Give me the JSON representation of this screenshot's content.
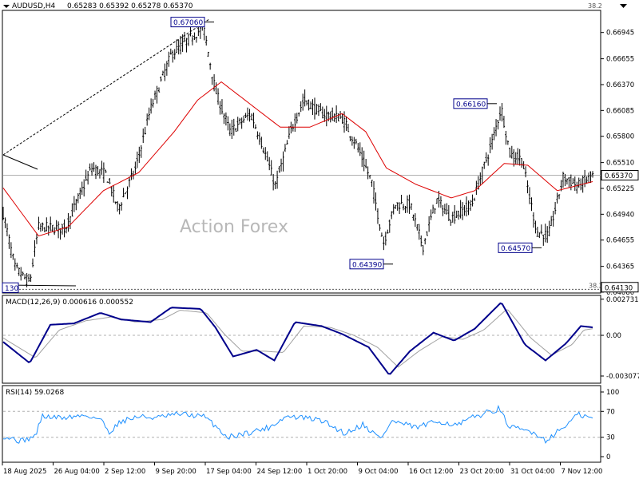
{
  "header": {
    "symbol": "AUDUSD,H4",
    "ohlc": "0.65283 0.65392 0.65278 0.65370",
    "fibo_level_top": "38.2",
    "fibo_level_bottom": "38.2"
  },
  "watermark": "Action Forex",
  "colors": {
    "bars": "#000000",
    "ma": "#dd0000",
    "macd_line": "#00008b",
    "macd_signal": "#a0a0a0",
    "rsi": "#1e90ff",
    "grid": "#b0b0b0",
    "label_box": "#00008b"
  },
  "chart_data": [
    {
      "type": "bar",
      "panel": "price",
      "x_labels": [
        "18 Aug 2025",
        "26 Aug 04:00",
        "2 Sep 12:00",
        "9 Sep 20:00",
        "17 Sep 04:00",
        "24 Sep 12:00",
        "1 Oct 20:00",
        "9 Oct 04:00",
        "16 Oct 12:00",
        "23 Oct 20:00",
        "31 Oct 04:00",
        "7 Nov 12:00"
      ],
      "y_ticks": [
        "0.66945",
        "0.66655",
        "0.66370",
        "0.66085",
        "0.65800",
        "0.65510",
        "0.65225",
        "0.64940",
        "0.64655",
        "0.64365",
        "0.64080"
      ],
      "ylim": [
        0.6408,
        0.6718
      ],
      "current_price": "0.65370",
      "fibo_price": "0.64130",
      "annotations": [
        {
          "label": "0.67060",
          "price": 0.6706
        },
        {
          "label": "0.66160",
          "price": 0.6616
        },
        {
          "label": "0.64390",
          "price": 0.6439
        },
        {
          "label": "0.64570",
          "price": 0.6457
        },
        {
          "label": "130",
          "price": 0.6413
        }
      ],
      "close_path": [
        {
          "t": 0.0,
          "p": 0.6495
        },
        {
          "t": 0.02,
          "p": 0.6435
        },
        {
          "t": 0.045,
          "p": 0.6418
        },
        {
          "t": 0.06,
          "p": 0.648
        },
        {
          "t": 0.105,
          "p": 0.6478
        },
        {
          "t": 0.15,
          "p": 0.6545
        },
        {
          "t": 0.175,
          "p": 0.6538
        },
        {
          "t": 0.195,
          "p": 0.65
        },
        {
          "t": 0.225,
          "p": 0.6545
        },
        {
          "t": 0.25,
          "p": 0.661
        },
        {
          "t": 0.285,
          "p": 0.667
        },
        {
          "t": 0.32,
          "p": 0.669
        },
        {
          "t": 0.34,
          "p": 0.67
        },
        {
          "t": 0.36,
          "p": 0.663
        },
        {
          "t": 0.385,
          "p": 0.6585
        },
        {
          "t": 0.42,
          "p": 0.6605
        },
        {
          "t": 0.44,
          "p": 0.657
        },
        {
          "t": 0.462,
          "p": 0.6525
        },
        {
          "t": 0.49,
          "p": 0.659
        },
        {
          "t": 0.51,
          "p": 0.662
        },
        {
          "t": 0.54,
          "p": 0.6605
        },
        {
          "t": 0.575,
          "p": 0.66
        },
        {
          "t": 0.6,
          "p": 0.657
        },
        {
          "t": 0.625,
          "p": 0.653
        },
        {
          "t": 0.645,
          "p": 0.6462
        },
        {
          "t": 0.665,
          "p": 0.6505
        },
        {
          "t": 0.69,
          "p": 0.6505
        },
        {
          "t": 0.712,
          "p": 0.6458
        },
        {
          "t": 0.735,
          "p": 0.651
        },
        {
          "t": 0.76,
          "p": 0.649
        },
        {
          "t": 0.795,
          "p": 0.6505
        },
        {
          "t": 0.83,
          "p": 0.6575
        },
        {
          "t": 0.845,
          "p": 0.6612
        },
        {
          "t": 0.86,
          "p": 0.656
        },
        {
          "t": 0.88,
          "p": 0.6555
        },
        {
          "t": 0.905,
          "p": 0.6475
        },
        {
          "t": 0.925,
          "p": 0.647
        },
        {
          "t": 0.95,
          "p": 0.6535
        },
        {
          "t": 0.975,
          "p": 0.6525
        },
        {
          "t": 1.0,
          "p": 0.6537
        }
      ],
      "ma_path": [
        {
          "t": 0.0,
          "p": 0.6523
        },
        {
          "t": 0.06,
          "p": 0.647
        },
        {
          "t": 0.11,
          "p": 0.648
        },
        {
          "t": 0.17,
          "p": 0.652
        },
        {
          "t": 0.23,
          "p": 0.654
        },
        {
          "t": 0.29,
          "p": 0.6585
        },
        {
          "t": 0.33,
          "p": 0.662
        },
        {
          "t": 0.37,
          "p": 0.664
        },
        {
          "t": 0.42,
          "p": 0.6615
        },
        {
          "t": 0.47,
          "p": 0.659
        },
        {
          "t": 0.52,
          "p": 0.659
        },
        {
          "t": 0.575,
          "p": 0.6605
        },
        {
          "t": 0.615,
          "p": 0.6585
        },
        {
          "t": 0.65,
          "p": 0.6545
        },
        {
          "t": 0.7,
          "p": 0.6527
        },
        {
          "t": 0.76,
          "p": 0.6512
        },
        {
          "t": 0.8,
          "p": 0.652
        },
        {
          "t": 0.85,
          "p": 0.655
        },
        {
          "t": 0.89,
          "p": 0.6548
        },
        {
          "t": 0.94,
          "p": 0.652
        },
        {
          "t": 1.0,
          "p": 0.653
        }
      ]
    },
    {
      "type": "line",
      "panel": "macd",
      "label": "MACD(12,26,9) 0.000616 0.000552",
      "y_ticks": [
        "0.002731",
        "0.00",
        "-0.003077"
      ],
      "ylim": [
        -0.0035,
        0.0029
      ],
      "macd_path": [
        {
          "t": 0.0,
          "v": -0.0005
        },
        {
          "t": 0.045,
          "v": -0.0021
        },
        {
          "t": 0.08,
          "v": 0.0008
        },
        {
          "t": 0.12,
          "v": 0.0009
        },
        {
          "t": 0.165,
          "v": 0.0017
        },
        {
          "t": 0.2,
          "v": 0.0012
        },
        {
          "t": 0.25,
          "v": 0.001
        },
        {
          "t": 0.285,
          "v": 0.0021
        },
        {
          "t": 0.335,
          "v": 0.002
        },
        {
          "t": 0.36,
          "v": 0.0006
        },
        {
          "t": 0.39,
          "v": -0.0016
        },
        {
          "t": 0.43,
          "v": -0.0011
        },
        {
          "t": 0.46,
          "v": -0.0019
        },
        {
          "t": 0.495,
          "v": 0.001
        },
        {
          "t": 0.54,
          "v": 0.0007
        },
        {
          "t": 0.575,
          "v": 0.0001
        },
        {
          "t": 0.62,
          "v": -0.0009
        },
        {
          "t": 0.655,
          "v": -0.003
        },
        {
          "t": 0.69,
          "v": -0.0012
        },
        {
          "t": 0.73,
          "v": 0.0002
        },
        {
          "t": 0.765,
          "v": -0.0004
        },
        {
          "t": 0.8,
          "v": 0.0005
        },
        {
          "t": 0.845,
          "v": 0.0025
        },
        {
          "t": 0.885,
          "v": -0.0007
        },
        {
          "t": 0.92,
          "v": -0.0019
        },
        {
          "t": 0.955,
          "v": -0.0006
        },
        {
          "t": 0.98,
          "v": 0.0007
        },
        {
          "t": 1.0,
          "v": 0.0006
        }
      ],
      "signal_path": [
        {
          "t": 0.0,
          "v": -0.0002
        },
        {
          "t": 0.055,
          "v": -0.0017
        },
        {
          "t": 0.095,
          "v": 0.0004
        },
        {
          "t": 0.14,
          "v": 0.0011
        },
        {
          "t": 0.185,
          "v": 0.0014
        },
        {
          "t": 0.225,
          "v": 0.001
        },
        {
          "t": 0.27,
          "v": 0.0012
        },
        {
          "t": 0.3,
          "v": 0.0019
        },
        {
          "t": 0.345,
          "v": 0.0017
        },
        {
          "t": 0.375,
          "v": 0.0001
        },
        {
          "t": 0.405,
          "v": -0.0012
        },
        {
          "t": 0.445,
          "v": -0.0012
        },
        {
          "t": 0.475,
          "v": -0.0013
        },
        {
          "t": 0.51,
          "v": 0.0007
        },
        {
          "t": 0.555,
          "v": 0.0006
        },
        {
          "t": 0.595,
          "v": 0.0
        },
        {
          "t": 0.635,
          "v": -0.0009
        },
        {
          "t": 0.67,
          "v": -0.0024
        },
        {
          "t": 0.705,
          "v": -0.0012
        },
        {
          "t": 0.745,
          "v": -0.0001
        },
        {
          "t": 0.78,
          "v": -0.0003
        },
        {
          "t": 0.815,
          "v": 0.0004
        },
        {
          "t": 0.855,
          "v": 0.002
        },
        {
          "t": 0.895,
          "v": -0.0002
        },
        {
          "t": 0.93,
          "v": -0.0015
        },
        {
          "t": 0.965,
          "v": -0.0007
        },
        {
          "t": 0.985,
          "v": 0.0004
        },
        {
          "t": 1.0,
          "v": 0.0005
        }
      ]
    },
    {
      "type": "line",
      "panel": "rsi",
      "label": "RSI(14) 59.0268",
      "y_ticks": [
        "100",
        "70",
        "30",
        "0"
      ],
      "ylim": [
        0,
        100
      ],
      "rsi_path": [
        {
          "t": 0.0,
          "v": 32
        },
        {
          "t": 0.03,
          "v": 24
        },
        {
          "t": 0.055,
          "v": 32
        },
        {
          "t": 0.065,
          "v": 62
        },
        {
          "t": 0.1,
          "v": 60
        },
        {
          "t": 0.14,
          "v": 64
        },
        {
          "t": 0.165,
          "v": 58
        },
        {
          "t": 0.18,
          "v": 38
        },
        {
          "t": 0.2,
          "v": 55
        },
        {
          "t": 0.23,
          "v": 62
        },
        {
          "t": 0.26,
          "v": 60
        },
        {
          "t": 0.3,
          "v": 66
        },
        {
          "t": 0.34,
          "v": 62
        },
        {
          "t": 0.36,
          "v": 48
        },
        {
          "t": 0.38,
          "v": 30
        },
        {
          "t": 0.42,
          "v": 38
        },
        {
          "t": 0.45,
          "v": 45
        },
        {
          "t": 0.48,
          "v": 62
        },
        {
          "t": 0.51,
          "v": 60
        },
        {
          "t": 0.54,
          "v": 56
        },
        {
          "t": 0.58,
          "v": 36
        },
        {
          "t": 0.61,
          "v": 50
        },
        {
          "t": 0.64,
          "v": 28
        },
        {
          "t": 0.66,
          "v": 55
        },
        {
          "t": 0.7,
          "v": 45
        },
        {
          "t": 0.74,
          "v": 55
        },
        {
          "t": 0.77,
          "v": 48
        },
        {
          "t": 0.8,
          "v": 62
        },
        {
          "t": 0.84,
          "v": 74
        },
        {
          "t": 0.86,
          "v": 45
        },
        {
          "t": 0.9,
          "v": 38
        },
        {
          "t": 0.92,
          "v": 25
        },
        {
          "t": 0.95,
          "v": 45
        },
        {
          "t": 0.975,
          "v": 65
        },
        {
          "t": 1.0,
          "v": 59
        }
      ]
    }
  ]
}
